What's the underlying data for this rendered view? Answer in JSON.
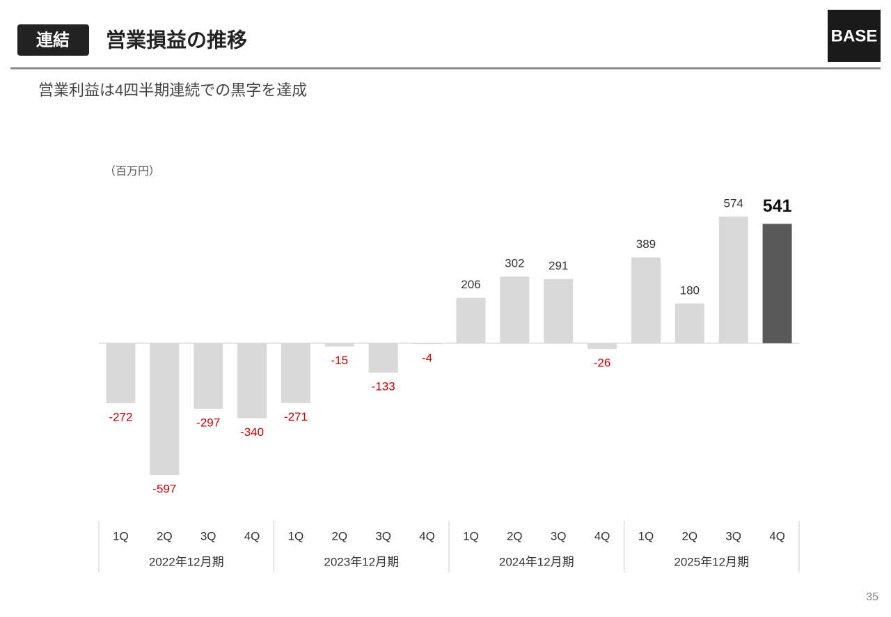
{
  "header": {
    "badge": "連結",
    "title": "営業損益の推移",
    "logo": "BASE"
  },
  "subtitle": "営業利益は4四半期連続での黒字を達成",
  "page_number": "35",
  "chart_data": {
    "type": "bar",
    "unit": "（百万円）",
    "categories": [
      "1Q",
      "2Q",
      "3Q",
      "4Q",
      "1Q",
      "2Q",
      "3Q",
      "4Q",
      "1Q",
      "2Q",
      "3Q",
      "4Q",
      "1Q",
      "2Q",
      "3Q",
      "4Q"
    ],
    "groups": [
      "2022年12月期",
      "2023年12月期",
      "2024年12月期",
      "2025年12月期"
    ],
    "values": [
      -272,
      -597,
      -297,
      -340,
      -271,
      -15,
      -133,
      -4,
      206,
      302,
      291,
      -26,
      389,
      180,
      574,
      541
    ],
    "colors": [
      "#d9d9d9",
      "#d9d9d9",
      "#d9d9d9",
      "#d9d9d9",
      "#d9d9d9",
      "#d9d9d9",
      "#d9d9d9",
      "#d9d9d9",
      "#d9d9d9",
      "#d9d9d9",
      "#d9d9d9",
      "#d9d9d9",
      "#d9d9d9",
      "#d9d9d9",
      "#d9d9d9",
      "#595959"
    ]
  }
}
